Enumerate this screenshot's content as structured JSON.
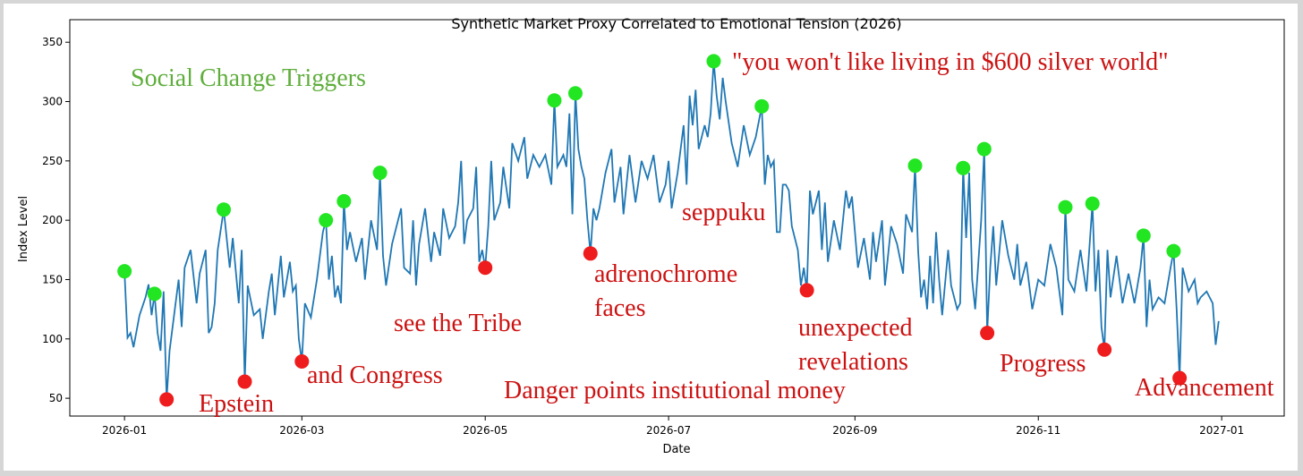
{
  "chart_data": {
    "type": "line",
    "title": "Synthetic Market Proxy Correlated to Emotional Tension (2026)",
    "x_label": "Date",
    "y_label": "Index Level",
    "xlim": [
      -18.2,
      385.8
    ],
    "ylim": [
      35,
      369
    ],
    "xticks": [
      {
        "value": 0,
        "label": "2026-01"
      },
      {
        "value": 59,
        "label": "2026-03"
      },
      {
        "value": 120,
        "label": "2026-05"
      },
      {
        "value": 181,
        "label": "2026-07"
      },
      {
        "value": 243,
        "label": "2026-09"
      },
      {
        "value": 304,
        "label": "2026-11"
      },
      {
        "value": 365,
        "label": "2027-01"
      }
    ],
    "yticks": [
      50,
      100,
      150,
      200,
      250,
      300,
      350
    ],
    "series": [
      {
        "type": "line",
        "color": "#1f77b4",
        "x": [
          0,
          1,
          2,
          3,
          5,
          7,
          8,
          9,
          10,
          11,
          12,
          13,
          14,
          15,
          17,
          18,
          19,
          20,
          22,
          24,
          25,
          27,
          28,
          29,
          30,
          31,
          33,
          35,
          36,
          38,
          39,
          40,
          41,
          43,
          45,
          46,
          48,
          49,
          50,
          52,
          53,
          55,
          56,
          57,
          58,
          59,
          60,
          62,
          64,
          66,
          67,
          68,
          69,
          70,
          71,
          72,
          73,
          74,
          75,
          77,
          79,
          80,
          82,
          84,
          85,
          86,
          87,
          89,
          91,
          92,
          93,
          95,
          96,
          97,
          98,
          100,
          102,
          103,
          105,
          106,
          108,
          110,
          111,
          112,
          113,
          114,
          116,
          117,
          118,
          119,
          120,
          121,
          122,
          123,
          125,
          126,
          128,
          129,
          131,
          133,
          134,
          136,
          138,
          140,
          142,
          143,
          144,
          146,
          147,
          148,
          149,
          150,
          151,
          152,
          153,
          154,
          155,
          156,
          157,
          158,
          160,
          162,
          163,
          165,
          166,
          168,
          170,
          172,
          174,
          176,
          178,
          180,
          181,
          182,
          184,
          186,
          187,
          188,
          189,
          190,
          191,
          193,
          194,
          195,
          196,
          197,
          198,
          199,
          200,
          202,
          204,
          206,
          208,
          210,
          212,
          213,
          214,
          215,
          216,
          217,
          218,
          219,
          220,
          221,
          222,
          224,
          225,
          226,
          227,
          228,
          229,
          231,
          232,
          233,
          234,
          236,
          238,
          240,
          241,
          242,
          244,
          246,
          248,
          249,
          250,
          252,
          253,
          255,
          257,
          259,
          260,
          262,
          263,
          264,
          265,
          266,
          267,
          268,
          269,
          270,
          271,
          272,
          274,
          275,
          277,
          278,
          279,
          280,
          281,
          282,
          283,
          285,
          286,
          287,
          288,
          289,
          290,
          292,
          294,
          296,
          297,
          298,
          300,
          302,
          304,
          306,
          308,
          310,
          312,
          313,
          314,
          316,
          318,
          320,
          322,
          323,
          324,
          325,
          326,
          327,
          328,
          330,
          332,
          334,
          336,
          338,
          339,
          340,
          341,
          342,
          344,
          346,
          348,
          349,
          350,
          351,
          352,
          354,
          356,
          357,
          358,
          360,
          362,
          363,
          364
        ],
        "values": [
          157,
          101,
          105,
          93,
          120,
          135,
          146,
          120,
          138,
          105,
          90,
          140,
          49,
          90,
          130,
          150,
          110,
          160,
          175,
          130,
          155,
          175,
          105,
          110,
          130,
          175,
          209,
          160,
          185,
          130,
          175,
          64,
          145,
          120,
          125,
          100,
          140,
          155,
          120,
          170,
          135,
          165,
          140,
          145,
          100,
          81,
          130,
          118,
          150,
          190,
          200,
          150,
          170,
          135,
          145,
          130,
          216,
          175,
          190,
          165,
          185,
          150,
          200,
          175,
          240,
          170,
          145,
          180,
          200,
          210,
          160,
          155,
          200,
          145,
          180,
          210,
          165,
          190,
          170,
          210,
          185,
          195,
          215,
          250,
          180,
          200,
          210,
          245,
          165,
          175,
          160,
          195,
          250,
          200,
          215,
          245,
          210,
          265,
          250,
          270,
          235,
          255,
          245,
          255,
          230,
          301,
          245,
          255,
          245,
          290,
          205,
          307,
          260,
          245,
          235,
          200,
          172,
          210,
          200,
          210,
          240,
          260,
          215,
          245,
          205,
          255,
          215,
          250,
          235,
          255,
          215,
          230,
          250,
          210,
          240,
          280,
          230,
          305,
          280,
          310,
          260,
          280,
          270,
          290,
          334,
          305,
          285,
          320,
          300,
          265,
          245,
          280,
          255,
          270,
          296,
          230,
          255,
          245,
          250,
          190,
          190,
          230,
          230,
          225,
          195,
          175,
          145,
          160,
          141,
          225,
          205,
          225,
          175,
          215,
          165,
          200,
          175,
          225,
          210,
          220,
          160,
          185,
          150,
          190,
          165,
          200,
          145,
          195,
          180,
          155,
          205,
          190,
          246,
          175,
          135,
          150,
          125,
          170,
          130,
          190,
          150,
          120,
          175,
          145,
          125,
          130,
          244,
          185,
          240,
          150,
          125,
          200,
          260,
          105,
          160,
          195,
          145,
          200,
          170,
          150,
          180,
          145,
          165,
          125,
          150,
          145,
          180,
          160,
          120,
          211,
          150,
          140,
          175,
          140,
          214,
          140,
          175,
          110,
          91,
          175,
          135,
          170,
          130,
          155,
          130,
          160,
          187,
          110,
          150,
          125,
          135,
          130,
          160,
          174,
          125,
          67,
          160,
          140,
          150,
          130,
          135,
          140,
          130,
          95,
          115
        ]
      },
      {
        "type": "scatter",
        "color": "#22e622",
        "x": [
          0,
          10,
          33,
          67,
          73,
          85,
          143,
          150,
          196,
          212,
          263,
          279,
          286,
          313,
          322,
          339,
          349
        ],
        "values": [
          157,
          138,
          209,
          200,
          216,
          240,
          301,
          307,
          334,
          296,
          246,
          244,
          260,
          211,
          214,
          187,
          174
        ]
      },
      {
        "type": "scatter",
        "color": "#ee1c1c",
        "x": [
          14,
          40,
          59,
          120,
          155,
          227,
          287,
          326,
          351
        ],
        "values": [
          49,
          64,
          81,
          160,
          172,
          141,
          105,
          91,
          67
        ]
      }
    ],
    "annotations": [
      {
        "lines": [
          "Social Change Triggers"
        ],
        "color": "#5fae3c"
      },
      {
        "lines": [
          "\"you won't like living in $600 silver world\""
        ],
        "color": "#cc1111"
      },
      {
        "lines": [
          "seppuku"
        ],
        "color": "#cc1111"
      },
      {
        "lines": [
          "adrenochrome",
          "faces"
        ],
        "color": "#cc1111"
      },
      {
        "lines": [
          "see the Tribe"
        ],
        "color": "#cc1111"
      },
      {
        "lines": [
          "and Congress"
        ],
        "color": "#cc1111"
      },
      {
        "lines": [
          "Epstein"
        ],
        "color": "#cc1111"
      },
      {
        "lines": [
          "Danger points  institutional money"
        ],
        "color": "#cc1111"
      },
      {
        "lines": [
          "unexpected",
          "revelations"
        ],
        "color": "#cc1111"
      },
      {
        "lines": [
          "Progress"
        ],
        "color": "#cc1111"
      },
      {
        "lines": [
          "Advancement"
        ],
        "color": "#cc1111"
      }
    ]
  }
}
